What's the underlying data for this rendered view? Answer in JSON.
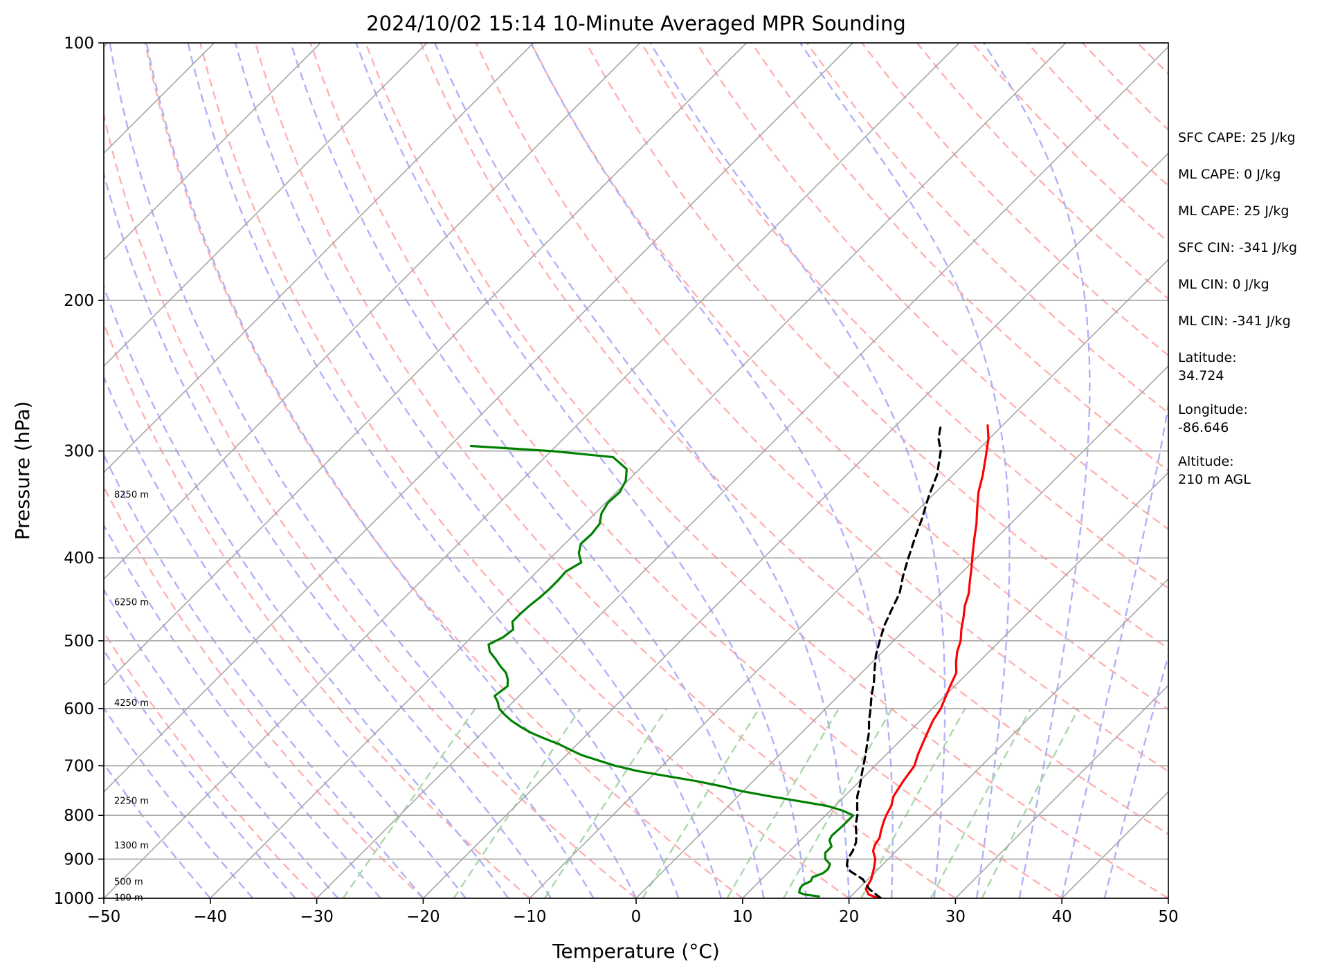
{
  "chart_data": {
    "type": "line",
    "title": "2024/10/02 15:14 10-Minute Averaged MPR Sounding",
    "xlabel": "Temperature (°C)",
    "ylabel": "Pressure (hPa)",
    "xlim": [
      -50,
      50
    ],
    "ylim": [
      1000,
      100
    ],
    "yscale": "log",
    "grid": true,
    "x_ticks": [
      "−50",
      "−40",
      "−30",
      "−20",
      "−10",
      "0",
      "10",
      "20",
      "30",
      "40",
      "50"
    ],
    "y_ticks": [
      "100",
      "200",
      "300",
      "400",
      "500",
      "600",
      "700",
      "800",
      "900",
      "1000"
    ],
    "y_tick_values": [
      100,
      200,
      300,
      400,
      500,
      600,
      700,
      800,
      900,
      1000
    ],
    "series": [
      {
        "color": "#ff0000",
        "points": [
          [
            1000,
            22.8
          ],
          [
            990,
            21.5
          ],
          [
            975,
            20.7
          ],
          [
            950,
            20.3
          ],
          [
            925,
            19.6
          ],
          [
            900,
            18.8
          ],
          [
            880,
            17.8
          ],
          [
            865,
            17.4
          ],
          [
            850,
            17.2
          ],
          [
            835,
            16.7
          ],
          [
            815,
            16.1
          ],
          [
            800,
            15.7
          ],
          [
            780,
            15.3
          ],
          [
            760,
            14.6
          ],
          [
            730,
            14.1
          ],
          [
            700,
            13.7
          ],
          [
            680,
            13.0
          ],
          [
            660,
            12.4
          ],
          [
            640,
            11.8
          ],
          [
            620,
            11.2
          ],
          [
            600,
            10.8
          ],
          [
            580,
            10.1
          ],
          [
            560,
            9.4
          ],
          [
            545,
            8.9
          ],
          [
            530,
            7.9
          ],
          [
            515,
            7.0
          ],
          [
            500,
            6.3
          ],
          [
            485,
            5.3
          ],
          [
            470,
            4.4
          ],
          [
            455,
            3.4
          ],
          [
            440,
            2.6
          ],
          [
            425,
            1.5
          ],
          [
            410,
            0.4
          ],
          [
            395,
            -0.8
          ],
          [
            380,
            -2.0
          ],
          [
            365,
            -3.2
          ],
          [
            350,
            -4.6
          ],
          [
            335,
            -6.0
          ],
          [
            320,
            -7.2
          ],
          [
            305,
            -8.6
          ],
          [
            290,
            -10.1
          ],
          [
            280,
            -11.4
          ]
        ]
      },
      {
        "color": "#000000",
        "dashed": true,
        "points": [
          [
            1000,
            23.0
          ],
          [
            975,
            21.0
          ],
          [
            950,
            19.5
          ],
          [
            930,
            17.6
          ],
          [
            915,
            16.7
          ],
          [
            900,
            16.2
          ],
          [
            880,
            15.9
          ],
          [
            860,
            15.4
          ],
          [
            840,
            14.6
          ],
          [
            820,
            13.7
          ],
          [
            800,
            13.0
          ],
          [
            780,
            12.1
          ],
          [
            760,
            11.2
          ],
          [
            740,
            10.5
          ],
          [
            720,
            9.7
          ],
          [
            700,
            8.9
          ],
          [
            680,
            8.1
          ],
          [
            660,
            7.2
          ],
          [
            640,
            6.3
          ],
          [
            620,
            5.2
          ],
          [
            600,
            4.2
          ],
          [
            580,
            3.1
          ],
          [
            560,
            2.1
          ],
          [
            540,
            0.9
          ],
          [
            520,
            -0.3
          ],
          [
            500,
            -1.3
          ],
          [
            480,
            -2.3
          ],
          [
            460,
            -3.1
          ],
          [
            440,
            -3.9
          ],
          [
            420,
            -5.2
          ],
          [
            400,
            -6.4
          ],
          [
            380,
            -7.6
          ],
          [
            360,
            -8.8
          ],
          [
            340,
            -10.2
          ],
          [
            320,
            -11.5
          ],
          [
            300,
            -13.4
          ],
          [
            290,
            -14.8
          ],
          [
            280,
            -15.8
          ]
        ]
      },
      {
        "color": "#008000",
        "points": [
          [
            995,
            17.0
          ],
          [
            990,
            15.5
          ],
          [
            985,
            14.8
          ],
          [
            975,
            14.5
          ],
          [
            965,
            14.4
          ],
          [
            955,
            14.8
          ],
          [
            945,
            14.6
          ],
          [
            935,
            15.2
          ],
          [
            925,
            15.3
          ],
          [
            912,
            15.0
          ],
          [
            900,
            14.1
          ],
          [
            885,
            13.5
          ],
          [
            870,
            13.5
          ],
          [
            855,
            12.7
          ],
          [
            845,
            12.5
          ],
          [
            825,
            12.6
          ],
          [
            810,
            12.6
          ],
          [
            800,
            12.6
          ],
          [
            790,
            11.2
          ],
          [
            780,
            9.3
          ],
          [
            770,
            6.2
          ],
          [
            760,
            3.0
          ],
          [
            750,
            0.0
          ],
          [
            740,
            -2.4
          ],
          [
            730,
            -5.2
          ],
          [
            720,
            -8.5
          ],
          [
            710,
            -11.8
          ],
          [
            700,
            -14.4
          ],
          [
            690,
            -16.5
          ],
          [
            680,
            -18.6
          ],
          [
            670,
            -20.2
          ],
          [
            660,
            -21.8
          ],
          [
            650,
            -23.7
          ],
          [
            640,
            -25.5
          ],
          [
            630,
            -27.0
          ],
          [
            620,
            -28.4
          ],
          [
            610,
            -29.6
          ],
          [
            600,
            -30.7
          ],
          [
            590,
            -31.4
          ],
          [
            580,
            -32.3
          ],
          [
            565,
            -32.0
          ],
          [
            555,
            -32.6
          ],
          [
            545,
            -33.4
          ],
          [
            535,
            -34.6
          ],
          [
            525,
            -35.7
          ],
          [
            515,
            -36.9
          ],
          [
            505,
            -37.7
          ],
          [
            495,
            -37.0
          ],
          [
            485,
            -36.8
          ],
          [
            475,
            -37.6
          ],
          [
            465,
            -37.6
          ],
          [
            455,
            -37.5
          ],
          [
            445,
            -37.3
          ],
          [
            435,
            -37.2
          ],
          [
            425,
            -37.2
          ],
          [
            415,
            -37.3
          ],
          [
            405,
            -36.7
          ],
          [
            395,
            -37.8
          ],
          [
            385,
            -38.5
          ],
          [
            375,
            -38.4
          ],
          [
            365,
            -38.6
          ],
          [
            355,
            -39.4
          ],
          [
            345,
            -39.8
          ],
          [
            335,
            -39.7
          ],
          [
            325,
            -40.2
          ],
          [
            315,
            -41.2
          ],
          [
            305,
            -43.6
          ],
          [
            300,
            -50.0
          ],
          [
            296,
            -58.0
          ]
        ]
      }
    ],
    "height_labels": [
      {
        "label": "8250 m",
        "p": 337
      },
      {
        "label": "6250 m",
        "p": 450
      },
      {
        "label": "4250 m",
        "p": 590
      },
      {
        "label": "2250 m",
        "p": 768
      },
      {
        "label": "1300 m",
        "p": 866
      },
      {
        "label": "500 m",
        "p": 955
      },
      {
        "label": "100 m",
        "p": 997
      }
    ]
  },
  "stats": {
    "sfc_cape": "SFC CAPE: 25 J/kg",
    "ml_cape_1": "ML CAPE: 0 J/kg",
    "ml_cape_2": "ML CAPE: 25 J/kg",
    "sfc_cin": "SFC CIN: -341 J/kg",
    "ml_cin_1": "ML CIN: 0 J/kg",
    "ml_cin_2": "ML CIN: -341 J/kg",
    "latitude_label": "Latitude:",
    "latitude_value": "34.724",
    "longitude_label": "Longitude:",
    "longitude_value": "-86.646",
    "altitude_label": "Altitude:",
    "altitude_value": "210 m AGL"
  },
  "colors": {
    "isotherm": "#a6a6a6",
    "dry_adiabat": "#ffb0b0",
    "moist_adiabat": "#b0b0f8",
    "mixing_ratio": "#a8d8a8"
  }
}
